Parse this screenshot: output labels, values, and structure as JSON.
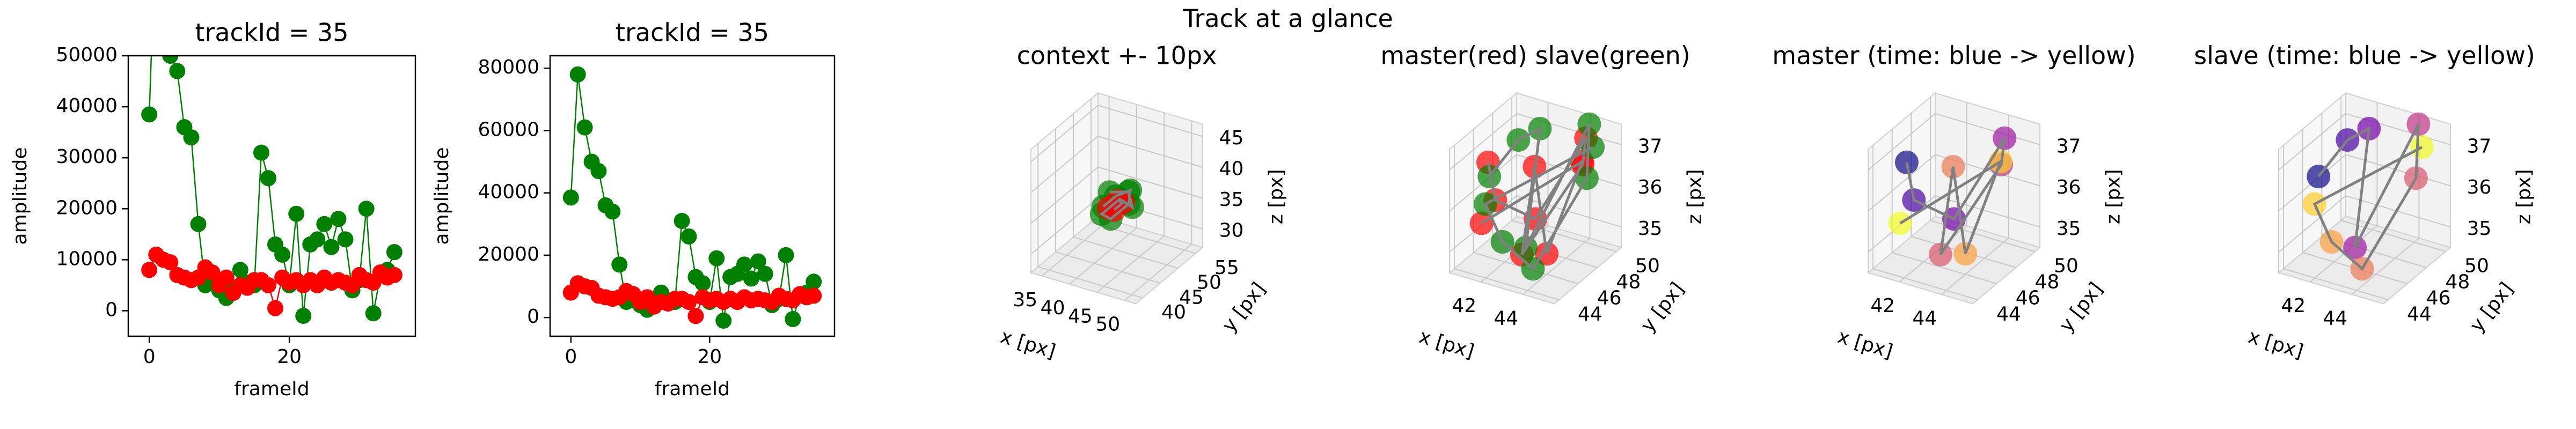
{
  "title": "Track at a glance",
  "chart_data": [
    {
      "type": "line",
      "title": "trackId = 35",
      "xlabel": "frameId",
      "ylabel": "amplitude",
      "xlim": [
        -3,
        38
      ],
      "ylim": [
        -5000,
        50000
      ],
      "xticks": [
        0,
        20
      ],
      "yticks": [
        0,
        10000,
        20000,
        30000,
        40000,
        50000
      ],
      "x": [
        0,
        1,
        2,
        3,
        4,
        5,
        6,
        7,
        8,
        9,
        10,
        11,
        12,
        13,
        14,
        15,
        16,
        17,
        18,
        19,
        20,
        21,
        22,
        23,
        24,
        25,
        26,
        27,
        28,
        29,
        30,
        31,
        32,
        33,
        34,
        35
      ],
      "series": [
        {
          "color": "green",
          "values": [
            38500,
            78000,
            61000,
            50000,
            47000,
            36000,
            34000,
            17000,
            5000,
            5500,
            4000,
            2500,
            4500,
            8000,
            5500,
            5000,
            31000,
            26000,
            13000,
            11000,
            5000,
            19000,
            -1000,
            13000,
            14000,
            17000,
            12500,
            18000,
            14000,
            4000,
            6000,
            20000,
            -500,
            7000,
            8000,
            11500
          ]
        },
        {
          "color": "red",
          "values": [
            8000,
            11000,
            10000,
            9500,
            7000,
            6500,
            6000,
            6500,
            8500,
            7500,
            5000,
            6500,
            3500,
            5000,
            4500,
            6000,
            6000,
            5000,
            500,
            6500,
            5500,
            6000,
            5000,
            6000,
            5000,
            6500,
            5500,
            6000,
            5500,
            5000,
            7000,
            6000,
            5500,
            7500,
            6500,
            7000
          ]
        }
      ]
    },
    {
      "type": "line",
      "title": "trackId = 35",
      "xlabel": "frameId",
      "ylabel": "amplitude",
      "xlim": [
        -3,
        38
      ],
      "ylim": [
        -6000,
        84000
      ],
      "xticks": [
        0,
        20
      ],
      "yticks": [
        0,
        20000,
        40000,
        60000,
        80000
      ],
      "x": [
        0,
        1,
        2,
        3,
        4,
        5,
        6,
        7,
        8,
        9,
        10,
        11,
        12,
        13,
        14,
        15,
        16,
        17,
        18,
        19,
        20,
        21,
        22,
        23,
        24,
        25,
        26,
        27,
        28,
        29,
        30,
        31,
        32,
        33,
        34,
        35
      ],
      "series": [
        {
          "color": "green",
          "values": [
            38500,
            78000,
            61000,
            50000,
            47000,
            36000,
            34000,
            17000,
            5000,
            5500,
            4000,
            2500,
            4500,
            8000,
            5500,
            5000,
            31000,
            26000,
            13000,
            11000,
            5000,
            19000,
            -1000,
            13000,
            14000,
            17000,
            12500,
            18000,
            14000,
            4000,
            6000,
            20000,
            -500,
            7000,
            8000,
            11500
          ]
        },
        {
          "color": "red",
          "values": [
            8000,
            11000,
            10000,
            9500,
            7000,
            6500,
            6000,
            6500,
            8500,
            7500,
            5000,
            6500,
            3500,
            5000,
            4500,
            6000,
            6000,
            5000,
            500,
            6500,
            5500,
            6000,
            5000,
            6000,
            5000,
            6500,
            5500,
            6000,
            5500,
            5000,
            7000,
            6000,
            5500,
            7500,
            6500,
            7000
          ]
        }
      ]
    },
    {
      "type": "scatter3d",
      "title": "context +- 10px",
      "xlabel": "x [px]",
      "ylabel": "y [px]",
      "zlabel": "z [px]",
      "xlim": [
        33,
        52
      ],
      "ylim": [
        38,
        57
      ],
      "zlim": [
        27,
        47
      ],
      "xticks": [
        35,
        40,
        45,
        50
      ],
      "yticks": [
        40,
        45,
        50,
        55
      ],
      "zticks": [
        30,
        35,
        40,
        45
      ],
      "line_color": "gray",
      "series": [
        {
          "color": "green",
          "x": [
            41,
            42,
            44,
            45,
            43,
            42,
            44,
            45,
            43,
            41.5
          ],
          "y": [
            46,
            48,
            49,
            47,
            45,
            44,
            46,
            48,
            50,
            47
          ],
          "z": [
            36,
            37,
            38,
            37,
            35,
            36,
            38,
            36,
            37,
            38
          ]
        },
        {
          "color": "red",
          "x": [
            42,
            43,
            44,
            43
          ],
          "y": [
            46,
            47,
            47,
            46
          ],
          "z": [
            36,
            37,
            37,
            36
          ]
        }
      ]
    },
    {
      "type": "scatter3d",
      "title": "master(red) slave(green)",
      "xlabel": "x [px]",
      "ylabel": "y [px]",
      "zlabel": "z [px]",
      "xlim": [
        40.5,
        45.5
      ],
      "ylim": [
        43.5,
        50.5
      ],
      "zlim": [
        34.5,
        37.5
      ],
      "xticks": [
        42,
        44
      ],
      "yticks": [
        44,
        46,
        48,
        50
      ],
      "zticks": [
        35,
        36,
        37
      ],
      "line_color": "gray",
      "series": [
        {
          "color": "red",
          "x": [
            41.2,
            42,
            43,
            44.5,
            44.8,
            43.5,
            42.5,
            44,
            45,
            41.8
          ],
          "y": [
            46,
            45,
            47,
            49,
            48,
            44.5,
            48,
            46,
            47.5,
            44
          ],
          "z": [
            36.8,
            36.2,
            35.5,
            37.3,
            36.9,
            35.2,
            36.5,
            35,
            37.1,
            35.8
          ]
        },
        {
          "color": "green",
          "x": [
            40.8,
            41.5,
            42.3,
            43,
            44.2,
            45,
            43.8,
            42.8,
            41.3,
            44.6
          ],
          "y": [
            47,
            48.5,
            49,
            46,
            50,
            48,
            45,
            44,
            45.5,
            49.5
          ],
          "z": [
            36.2,
            36.9,
            37.2,
            35,
            37.4,
            36.6,
            34.8,
            35.5,
            35.9,
            37
          ]
        }
      ]
    },
    {
      "type": "scatter3d",
      "title": "master (time: blue -> yellow)",
      "xlabel": "x [px]",
      "ylabel": "y [px]",
      "zlabel": "z [px]",
      "xlim": [
        40.5,
        45.5
      ],
      "ylim": [
        43.5,
        50.5
      ],
      "zlim": [
        34.5,
        37.5
      ],
      "xticks": [
        42,
        44
      ],
      "yticks": [
        44,
        46,
        48,
        50
      ],
      "zticks": [
        35,
        36,
        37
      ],
      "line_color": "gray",
      "series": [
        {
          "colors": [
            "#0d0887",
            "#46039f",
            "#7201a8",
            "#9c179e",
            "#bd3786",
            "#d8576b",
            "#ed7953",
            "#fb9f3a",
            "#fdca26",
            "#f0f921"
          ],
          "x": [
            41.2,
            42,
            43,
            44.5,
            44.8,
            43.5,
            42.5,
            44,
            45,
            41.8
          ],
          "y": [
            46,
            45,
            47,
            49,
            48,
            44.5,
            48,
            46,
            47.5,
            44
          ],
          "z": [
            36.8,
            36.2,
            35.5,
            37.3,
            36.9,
            35.2,
            36.5,
            35,
            37.1,
            35.8
          ]
        }
      ]
    },
    {
      "type": "scatter3d",
      "title": "slave (time: blue -> yellow)",
      "xlabel": "x [px]",
      "ylabel": "y [px]",
      "zlabel": "z [px]",
      "xlim": [
        40.5,
        45.5
      ],
      "ylim": [
        43.5,
        50.5
      ],
      "zlim": [
        34.5,
        37.5
      ],
      "xticks": [
        42,
        44
      ],
      "yticks": [
        44,
        46,
        48,
        50
      ],
      "zticks": [
        35,
        36,
        37
      ],
      "line_color": "gray",
      "series": [
        {
          "colors": [
            "#0d0887",
            "#46039f",
            "#7201a8",
            "#9c179e",
            "#bd3786",
            "#d8576b",
            "#ed7953",
            "#fb9f3a",
            "#fdca26",
            "#f0f921"
          ],
          "x": [
            40.8,
            41.5,
            42.3,
            43,
            44.2,
            45,
            43.8,
            42.8,
            41.3,
            44.6
          ],
          "y": [
            47,
            48.5,
            49,
            46,
            50,
            48,
            45,
            44,
            45.5,
            49.5
          ],
          "z": [
            36.2,
            36.9,
            37.2,
            35,
            37.4,
            36.6,
            34.8,
            35.5,
            35.9,
            37
          ]
        }
      ]
    }
  ]
}
